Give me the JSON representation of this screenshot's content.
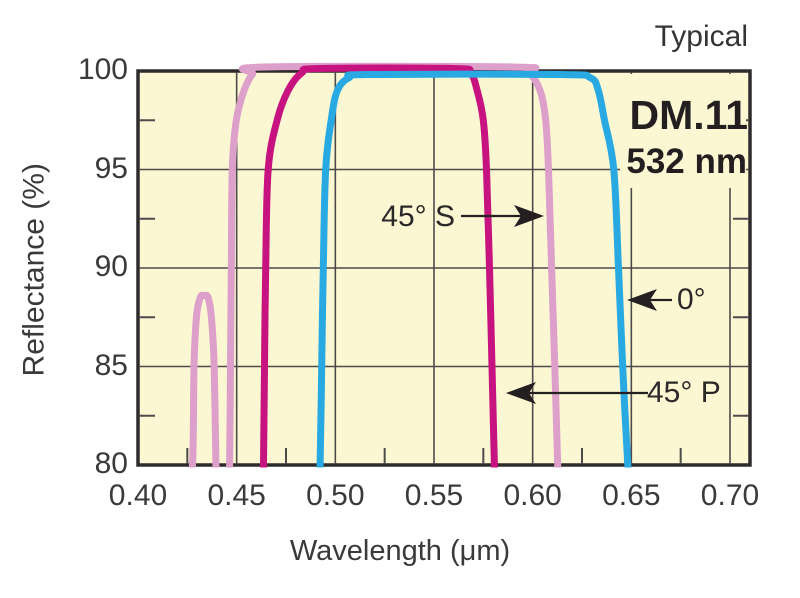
{
  "page": {
    "background": "#ffffff"
  },
  "plot": {
    "background": "#FBF7D3",
    "border_color": "#2e2b2c",
    "grid_color": "#4d4a4b",
    "corner_note": "Typical",
    "product_model": "DM.11",
    "product_wavelength": "532 nm"
  },
  "axes": {
    "x": {
      "title": "Wavelength (μm)",
      "min": 0.4,
      "max": 0.71,
      "major_ticks": [
        0.4,
        0.45,
        0.5,
        0.55,
        0.6,
        0.65,
        0.7
      ],
      "tick_labels": [
        "0.40",
        "0.45",
        "0.50",
        "0.55",
        "0.60",
        "0.65",
        "0.70"
      ],
      "minor_ticks": [
        0.425,
        0.475,
        0.525,
        0.575,
        0.625,
        0.675
      ]
    },
    "y": {
      "title": "Reflectance (%)",
      "min": 80,
      "max": 100,
      "major_ticks": [
        100,
        95,
        90,
        85,
        80
      ],
      "tick_labels": [
        "100",
        "95",
        "90",
        "85",
        "80"
      ],
      "minor_ticks": [
        97.5,
        92.5,
        87.5,
        82.5
      ]
    }
  },
  "annotations": {
    "s45": {
      "label": "45° S",
      "series": "45° S",
      "arrow_direction": "right"
    },
    "deg0": {
      "label": "0°",
      "series": "0°",
      "arrow_direction": "left"
    },
    "p45": {
      "label": "45° P",
      "series": "45° P",
      "arrow_direction": "left"
    }
  },
  "chart_data": {
    "type": "line",
    "title": "Typical",
    "xlabel": "Wavelength (μm)",
    "ylabel": "Reflectance (%)",
    "xlim": [
      0.4,
      0.71
    ],
    "ylim": [
      80,
      100
    ],
    "grid": true,
    "legend": "inline-arrow-annotations",
    "series": [
      {
        "name": "45° S",
        "color": "#DDA0CB",
        "points": [
          [
            0.4247,
            78.5
          ],
          [
            0.4276,
            80
          ],
          [
            0.4284,
            85
          ],
          [
            0.4296,
            87.5
          ],
          [
            0.4315,
            88.5
          ],
          [
            0.4335,
            88.6
          ],
          [
            0.4355,
            88.5
          ],
          [
            0.4372,
            87.5
          ],
          [
            0.4386,
            85
          ],
          [
            0.4395,
            80
          ],
          [
            0.4401,
            78.5
          ],
          [
            0.4455,
            78.5
          ],
          [
            0.4464,
            80
          ],
          [
            0.4469,
            85
          ],
          [
            0.4473,
            90
          ],
          [
            0.4478,
            95
          ],
          [
            0.4498,
            97.5
          ],
          [
            0.4537,
            99
          ],
          [
            0.458,
            99.7
          ],
          [
            0.464,
            100
          ],
          [
            0.59,
            100
          ],
          [
            0.5977,
            99.8
          ],
          [
            0.6038,
            99
          ],
          [
            0.6066,
            97.5
          ],
          [
            0.608,
            95
          ],
          [
            0.6096,
            90
          ],
          [
            0.6112,
            85
          ],
          [
            0.6127,
            80
          ],
          [
            0.6133,
            78.5
          ]
        ]
      },
      {
        "name": "45° P",
        "color": "#C6137F",
        "points": [
          [
            0.4629,
            78.5
          ],
          [
            0.4636,
            80
          ],
          [
            0.4641,
            85
          ],
          [
            0.4647,
            90
          ],
          [
            0.466,
            95
          ],
          [
            0.4705,
            97.5
          ],
          [
            0.476,
            99
          ],
          [
            0.483,
            99.8
          ],
          [
            0.492,
            100
          ],
          [
            0.56,
            100
          ],
          [
            0.5684,
            99.8
          ],
          [
            0.5719,
            99
          ],
          [
            0.575,
            97.5
          ],
          [
            0.5766,
            95
          ],
          [
            0.5781,
            90
          ],
          [
            0.5794,
            85
          ],
          [
            0.5806,
            80
          ],
          [
            0.5812,
            78.5
          ]
        ]
      },
      {
        "name": "0°",
        "color": "#29A9E1",
        "points": [
          [
            0.4914,
            78.5
          ],
          [
            0.4923,
            80
          ],
          [
            0.4931,
            85
          ],
          [
            0.4939,
            90
          ],
          [
            0.4951,
            95
          ],
          [
            0.4979,
            97.5
          ],
          [
            0.501,
            99
          ],
          [
            0.507,
            99.8
          ],
          [
            0.517,
            100
          ],
          [
            0.614,
            100
          ],
          [
            0.6292,
            99.8
          ],
          [
            0.6333,
            99
          ],
          [
            0.6364,
            97.5
          ],
          [
            0.6411,
            95
          ],
          [
            0.6435,
            90
          ],
          [
            0.6456,
            85
          ],
          [
            0.6482,
            80
          ],
          [
            0.6491,
            78.5
          ]
        ]
      }
    ]
  }
}
